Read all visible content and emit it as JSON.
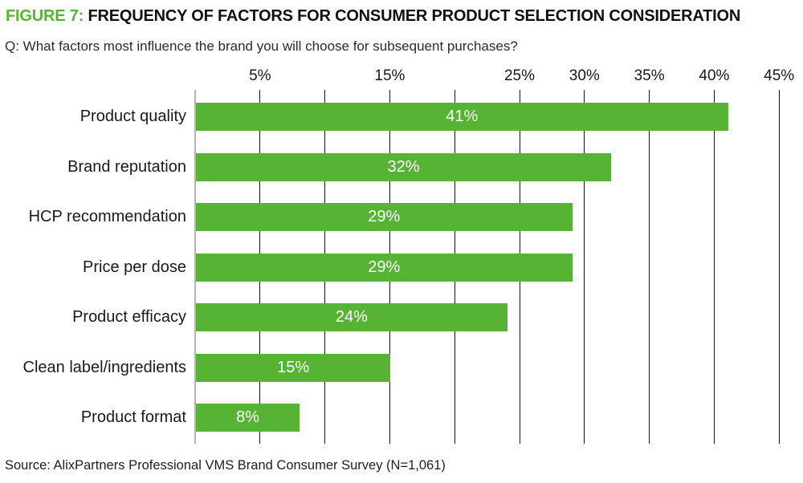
{
  "figure": {
    "label": "FIGURE 7:",
    "title": "FREQUENCY OF FACTORS FOR CONSUMER PRODUCT SELECTION CONSIDERATION"
  },
  "subtitle": "Q: What factors most influence the brand you will choose for subsequent purchases?",
  "source": "Source: AlixPartners Professional VMS Brand Consumer Survey (N=1,061)",
  "colors": {
    "accent_green": "#56b334",
    "bar_green": "#56b334",
    "grid_line": "#141414",
    "zero_axis_line": "#b5b5b5",
    "text_dark": "#1a1a1a",
    "bar_label_text": "#ffffff"
  },
  "chart_data": {
    "type": "bar",
    "orientation": "horizontal",
    "title": "FIGURE 7: FREQUENCY OF FACTORS FOR CONSUMER PRODUCT SELECTION CONSIDERATION",
    "subtitle": "Q: What factors most influence the brand you will choose for subsequent purchases?",
    "categories": [
      "Product quality",
      "Brand reputation",
      "HCP recommendation",
      "Price per dose",
      "Product efficacy",
      "Clean label/ingredients",
      "Product format"
    ],
    "values": [
      41,
      32,
      29,
      29,
      24,
      15,
      8
    ],
    "value_labels": [
      "41%",
      "32%",
      "29%",
      "29%",
      "24%",
      "15%",
      "8%"
    ],
    "xlabel": "",
    "ylabel": "",
    "xlim": [
      0,
      45
    ],
    "x_axis_position": "top",
    "x_gridline_step": 5,
    "x_tick_label_values": [
      5,
      15,
      25,
      30,
      35,
      40,
      45
    ],
    "x_tick_labels": [
      "5%",
      "15%",
      "25%",
      "30%",
      "35%",
      "40%",
      "45%"
    ],
    "grid": true,
    "legend": false,
    "value_label_position": "center-inside",
    "value_label_color": "#ffffff",
    "bar_color": "#56b334"
  }
}
